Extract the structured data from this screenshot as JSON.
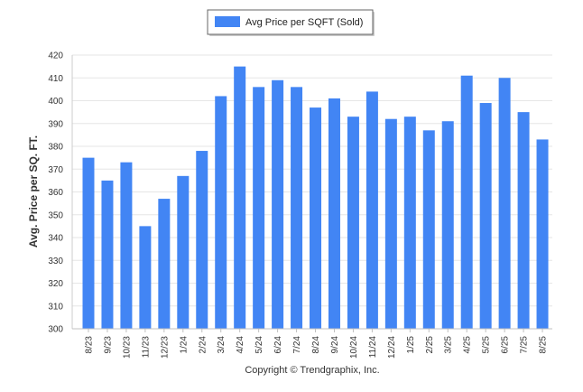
{
  "chart_data": {
    "type": "bar",
    "title": "",
    "xlabel": "",
    "ylabel": "Avg. Price per SQ. FT.",
    "ylim": [
      300,
      420
    ],
    "yticks": [
      300,
      310,
      320,
      330,
      340,
      350,
      360,
      370,
      380,
      390,
      400,
      410,
      420
    ],
    "grid": true,
    "legend_position": "top-center",
    "categories": [
      "8/23",
      "9/23",
      "10/23",
      "11/23",
      "12/23",
      "1/24",
      "2/24",
      "3/24",
      "4/24",
      "5/24",
      "6/24",
      "7/24",
      "8/24",
      "9/24",
      "10/24",
      "11/24",
      "12/24",
      "1/25",
      "2/25",
      "3/25",
      "4/25",
      "5/25",
      "6/25",
      "7/25",
      "8/25"
    ],
    "series": [
      {
        "name": "Avg Price per SQFT (Sold)",
        "color": "#4285f4",
        "values": [
          375,
          365,
          373,
          345,
          357,
          367,
          378,
          402,
          415,
          406,
          409,
          406,
          397,
          401,
          393,
          404,
          392,
          393,
          387,
          391,
          411,
          399,
          410,
          395,
          383
        ]
      }
    ],
    "credit": "Copyright © Trendgraphix, Inc."
  }
}
